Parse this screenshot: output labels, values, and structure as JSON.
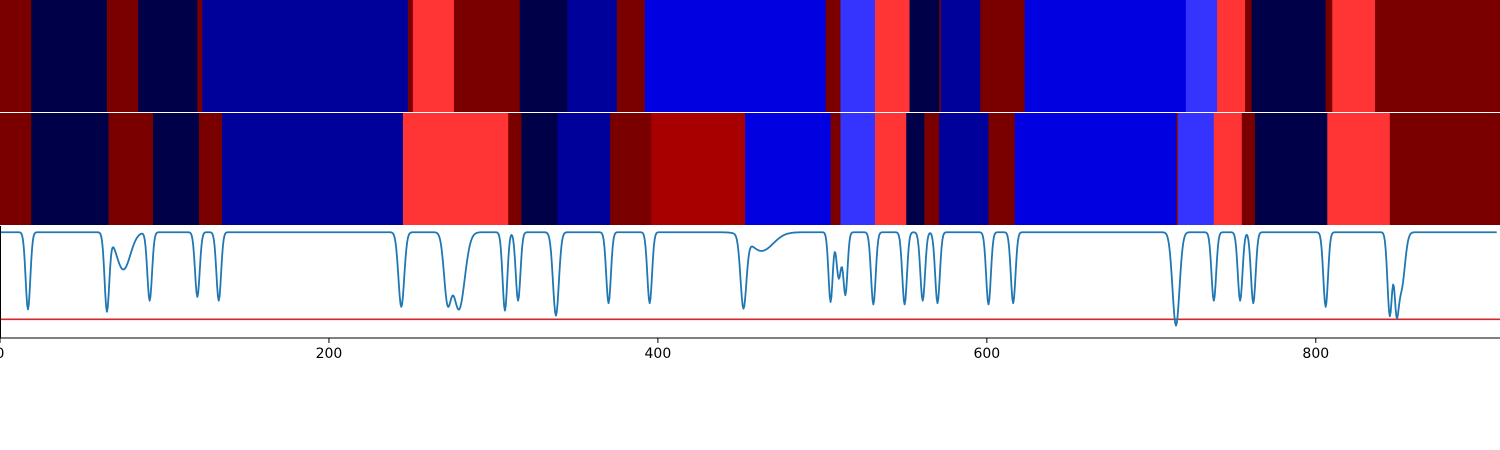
{
  "chart_data": {
    "type": "heatmap",
    "xlim": [
      0,
      912
    ],
    "x_ticks": [
      {
        "value": 0,
        "label": "0"
      },
      {
        "value": 200,
        "label": "200"
      },
      {
        "value": 400,
        "label": "400"
      },
      {
        "value": 600,
        "label": "600"
      },
      {
        "value": 800,
        "label": "800"
      }
    ],
    "palette": {
      "c0": "#7a0000",
      "c1": "#000048",
      "c2": "#00009b",
      "c3": "#0000e0",
      "c4": "#3434fe",
      "c5": "#ff3434",
      "c6": "#a80000"
    },
    "segment_rows": [
      {
        "segments": [
          [
            0,
            19,
            "c0"
          ],
          [
            19,
            65,
            "c1"
          ],
          [
            65,
            84,
            "c0"
          ],
          [
            84,
            120,
            "c1"
          ],
          [
            120,
            123,
            "c0"
          ],
          [
            123,
            248,
            "c2"
          ],
          [
            248,
            251,
            "c0"
          ],
          [
            251,
            276,
            "c5"
          ],
          [
            276,
            316,
            "c0"
          ],
          [
            316,
            345,
            "c1"
          ],
          [
            345,
            375,
            "c2"
          ],
          [
            375,
            392,
            "c0"
          ],
          [
            392,
            502,
            "c3"
          ],
          [
            502,
            511,
            "c0"
          ],
          [
            511,
            532,
            "c4"
          ],
          [
            532,
            553,
            "c5"
          ],
          [
            553,
            571,
            "c1"
          ],
          [
            571,
            572,
            "c0"
          ],
          [
            572,
            596,
            "c2"
          ],
          [
            596,
            623,
            "c0"
          ],
          [
            623,
            721,
            "c3"
          ],
          [
            721,
            740,
            "c4"
          ],
          [
            740,
            757,
            "c5"
          ],
          [
            757,
            761,
            "c0"
          ],
          [
            761,
            806,
            "c1"
          ],
          [
            806,
            810,
            "c0"
          ],
          [
            810,
            836,
            "c5"
          ],
          [
            836,
            912,
            "c0"
          ]
        ]
      },
      {
        "segments": [
          [
            0,
            19,
            "c0"
          ],
          [
            19,
            66,
            "c1"
          ],
          [
            66,
            93,
            "c0"
          ],
          [
            93,
            121,
            "c1"
          ],
          [
            121,
            135,
            "c0"
          ],
          [
            135,
            245,
            "c2"
          ],
          [
            245,
            309,
            "c5"
          ],
          [
            309,
            317,
            "c0"
          ],
          [
            317,
            339,
            "c1"
          ],
          [
            339,
            371,
            "c2"
          ],
          [
            371,
            396,
            "c0"
          ],
          [
            396,
            453,
            "c6"
          ],
          [
            453,
            505,
            "c3"
          ],
          [
            505,
            511,
            "c0"
          ],
          [
            511,
            532,
            "c4"
          ],
          [
            532,
            551,
            "c5"
          ],
          [
            551,
            562,
            "c1"
          ],
          [
            562,
            571,
            "c0"
          ],
          [
            571,
            601,
            "c2"
          ],
          [
            601,
            617,
            "c0"
          ],
          [
            617,
            715,
            "c3"
          ],
          [
            715,
            716,
            "c0"
          ],
          [
            716,
            738,
            "c4"
          ],
          [
            738,
            755,
            "c5"
          ],
          [
            755,
            763,
            "c0"
          ],
          [
            763,
            807,
            "c1"
          ],
          [
            807,
            845,
            "c5"
          ],
          [
            845,
            912,
            "c0"
          ]
        ]
      }
    ],
    "line": {
      "color": "#1f77b4",
      "ylim": [
        -0.85,
        0.05
      ],
      "baseline": 0,
      "dips": [
        [
          17,
          -0.62,
          2.0
        ],
        [
          65,
          -0.62,
          2.0
        ],
        [
          75,
          -0.3,
          6.0
        ],
        [
          91,
          -0.55,
          2.0
        ],
        [
          120,
          -0.52,
          2.0
        ],
        [
          133,
          -0.55,
          2.0
        ],
        [
          244,
          -0.6,
          2.5
        ],
        [
          272,
          -0.5,
          3.0
        ],
        [
          279,
          -0.62,
          5.0
        ],
        [
          307,
          -0.63,
          2.0
        ],
        [
          315,
          -0.55,
          2.0
        ],
        [
          338,
          -0.67,
          2.5
        ],
        [
          370,
          -0.57,
          2.0
        ],
        [
          395,
          -0.57,
          2.0
        ],
        [
          452,
          -0.57,
          2.5
        ],
        [
          463,
          -0.15,
          10.0
        ],
        [
          505,
          -0.56,
          1.8
        ],
        [
          510,
          -0.37,
          2.0
        ],
        [
          514,
          -0.5,
          1.8
        ],
        [
          531,
          -0.58,
          2.0
        ],
        [
          550,
          -0.58,
          2.0
        ],
        [
          561,
          -0.55,
          2.0
        ],
        [
          570,
          -0.57,
          2.0
        ],
        [
          601,
          -0.58,
          2.0
        ],
        [
          616,
          -0.57,
          2.0
        ],
        [
          715,
          -0.75,
          3.0
        ],
        [
          738,
          -0.55,
          2.0
        ],
        [
          754,
          -0.55,
          2.0
        ],
        [
          762,
          -0.57,
          2.0
        ],
        [
          806,
          -0.6,
          2.0
        ],
        [
          845,
          -0.67,
          2.0
        ],
        [
          849,
          -0.5,
          1.8
        ],
        [
          852,
          -0.45,
          3.0
        ]
      ]
    },
    "threshold": {
      "value": -0.7,
      "color": "#d62728"
    }
  }
}
